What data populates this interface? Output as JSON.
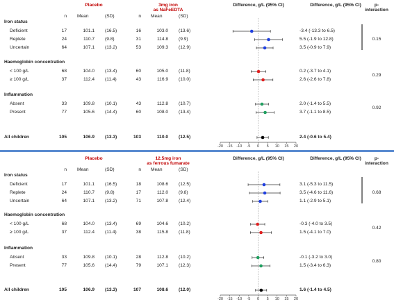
{
  "header_labels": {
    "n": "n",
    "mean": "Mean",
    "sd": "(SD)",
    "diff_header": "Difference, g/L (95% CI)",
    "p_header_1": "p-",
    "p_header_2": "interaction"
  },
  "colors": {
    "accent_red": "#c00000",
    "divider_blue": "#5b8bd0",
    "iron_status_marker": "#1f3fe0",
    "haemoglobin_marker": "#e02020",
    "inflammation_marker": "#20a060",
    "all_children_marker": "#000000"
  },
  "chart_data": [
    {
      "type": "forest",
      "placebo_label": "Placebo",
      "treatment_label_1": "3mg iron",
      "treatment_label_2": "as NaFeEDTA",
      "x_ticks": [
        "-20",
        "-15",
        "-10",
        "-5",
        "0",
        "5",
        "10",
        "15",
        "20"
      ],
      "xlim": [
        -20,
        20
      ],
      "groups": [
        {
          "title": "Iron status",
          "p_value": "0.15",
          "rows": [
            {
              "label": "Deficient",
              "pn": "17",
              "pmean": "101.1",
              "psd": "(16.5)",
              "tn": "16",
              "tmean": "103.0",
              "tsd": "(13.6)",
              "diff": -3.4,
              "lo": -13.3,
              "hi": 6.5,
              "ci_text": "-3.4 (-13.3 to 6.5)",
              "marker": "#1f3fe0"
            },
            {
              "label": "Replete",
              "pn": "24",
              "pmean": "110.7",
              "psd": "(9.8)",
              "tn": "31",
              "tmean": "114.8",
              "tsd": "(9.9)",
              "diff": 5.5,
              "lo": -1.9,
              "hi": 12.8,
              "ci_text": "5.5 (-1.9 to 12.8)",
              "marker": "#1f3fe0"
            },
            {
              "label": "Uncertain",
              "pn": "64",
              "pmean": "107.1",
              "psd": "(13.2)",
              "tn": "53",
              "tmean": "109.3",
              "tsd": "(12.9)",
              "diff": 3.5,
              "lo": -0.9,
              "hi": 7.9,
              "ci_text": "3.5 (-0.9 to 7.9)",
              "marker": "#1f3fe0"
            }
          ]
        },
        {
          "title": "Haemoglobin concentration",
          "p_value": "0.29",
          "rows": [
            {
              "label": "< 100 g/L",
              "pn": "68",
              "pmean": "104.0",
              "psd": "(13.4)",
              "tn": "60",
              "tmean": "105.0",
              "tsd": "(11.8)",
              "diff": 0.2,
              "lo": -3.7,
              "hi": 4.1,
              "ci_text": "0.2 (-3.7 to 4.1)",
              "marker": "#e02020"
            },
            {
              "label": "≥ 100 g/L",
              "pn": "37",
              "pmean": "112.4",
              "psd": "(11.4)",
              "tn": "43",
              "tmean": "116.9",
              "tsd": "(10.0)",
              "diff": 2.6,
              "lo": -2.6,
              "hi": 7.8,
              "ci_text": "2.6 (-2.6 to 7.8)",
              "marker": "#e02020"
            }
          ]
        },
        {
          "title": "Inflammation",
          "p_value": "0.92",
          "rows": [
            {
              "label": "Absent",
              "pn": "33",
              "pmean": "109.8",
              "psd": "(10.1)",
              "tn": "43",
              "tmean": "112.8",
              "tsd": "(10.7)",
              "diff": 2.0,
              "lo": -1.4,
              "hi": 5.5,
              "ci_text": "2.0 (-1.4 to 5.5)",
              "marker": "#20a060"
            },
            {
              "label": "Present",
              "pn": "77",
              "pmean": "105.6",
              "psd": "(14.4)",
              "tn": "60",
              "tmean": "108.0",
              "tsd": "(13.4)",
              "diff": 3.7,
              "lo": -1.1,
              "hi": 8.5,
              "ci_text": "3.7 (-1.1 to 8.5)",
              "marker": "#20a060"
            }
          ]
        }
      ],
      "total": {
        "label": "All children",
        "pn": "105",
        "pmean": "106.9",
        "psd": "(13.3)",
        "tn": "103",
        "tmean": "110.0",
        "tsd": "(12.5)",
        "diff": 2.4,
        "lo": -0.6,
        "hi": 5.4,
        "ci_text": "2.4 (-0.6 to 5.4)",
        "marker": "#000000"
      }
    },
    {
      "type": "forest",
      "placebo_label": "Placebo",
      "treatment_label_1": "12.5mg iron",
      "treatment_label_2": "as ferrous fumarate",
      "x_ticks": [
        "-20",
        "-15",
        "-10",
        "-5",
        "0",
        "5",
        "10",
        "15",
        "20"
      ],
      "xlim": [
        -20,
        20
      ],
      "groups": [
        {
          "title": "Iron status",
          "p_value": "0.68",
          "rows": [
            {
              "label": "Deficient",
              "pn": "17",
              "pmean": "101.1",
              "psd": "(16.5)",
              "tn": "18",
              "tmean": "108.6",
              "tsd": "(12.5)",
              "diff": 3.1,
              "lo": -5.3,
              "hi": 11.5,
              "ci_text": "3.1 (-5.3 to 11.5)",
              "marker": "#1f3fe0"
            },
            {
              "label": "Replete",
              "pn": "24",
              "pmean": "110.7",
              "psd": "(9.8)",
              "tn": "17",
              "tmean": "112.0",
              "tsd": "(9.8)",
              "diff": 3.5,
              "lo": -4.6,
              "hi": 11.6,
              "ci_text": "3.5 (-4.6 to 11.6)",
              "marker": "#1f3fe0"
            },
            {
              "label": "Uncertain",
              "pn": "64",
              "pmean": "107.1",
              "psd": "(13.2)",
              "tn": "71",
              "tmean": "107.8",
              "tsd": "(12.4)",
              "diff": 1.1,
              "lo": -2.9,
              "hi": 5.1,
              "ci_text": "1.1 (-2.9 to 5.1)",
              "marker": "#1f3fe0"
            }
          ]
        },
        {
          "title": "Haemoglobin concentration",
          "p_value": "0.42",
          "rows": [
            {
              "label": "< 100 g/L",
              "pn": "68",
              "pmean": "104.0",
              "psd": "(13.4)",
              "tn": "69",
              "tmean": "104.6",
              "tsd": "(10.2)",
              "diff": -0.3,
              "lo": -4.0,
              "hi": 3.5,
              "ci_text": "-0.3 (-4.0 to 3.5)",
              "marker": "#e02020"
            },
            {
              "label": "≥ 100 g/L",
              "pn": "37",
              "pmean": "112.4",
              "psd": "(11.4)",
              "tn": "38",
              "tmean": "115.8",
              "tsd": "(11.8)",
              "diff": 1.5,
              "lo": -4.1,
              "hi": 7.0,
              "ci_text": "1.5 (-4.1 to 7.0)",
              "marker": "#e02020"
            }
          ]
        },
        {
          "title": "Inflammation",
          "p_value": "0.80",
          "rows": [
            {
              "label": "Absent",
              "pn": "33",
              "pmean": "109.8",
              "psd": "(10.1)",
              "tn": "28",
              "tmean": "112.8",
              "tsd": "(10.2)",
              "diff": -0.1,
              "lo": -3.2,
              "hi": 3.0,
              "ci_text": "-0.1 (-3.2 to 3.0)",
              "marker": "#20a060"
            },
            {
              "label": "Present",
              "pn": "77",
              "pmean": "105.6",
              "psd": "(14.4)",
              "tn": "79",
              "tmean": "107.1",
              "tsd": "(12.3)",
              "diff": 1.5,
              "lo": -3.4,
              "hi": 6.3,
              "ci_text": "1.5 (-3.4 to 6.3)",
              "marker": "#20a060"
            }
          ]
        }
      ],
      "total": {
        "label": "All children",
        "pn": "105",
        "pmean": "106.9",
        "psd": "(13.3)",
        "tn": "107",
        "tmean": "108.6",
        "tsd": "(12.0)",
        "diff": 1.6,
        "lo": -1.4,
        "hi": 4.5,
        "ci_text": "1.6 (-1.4 to 4.5)",
        "marker": "#000000"
      }
    }
  ]
}
